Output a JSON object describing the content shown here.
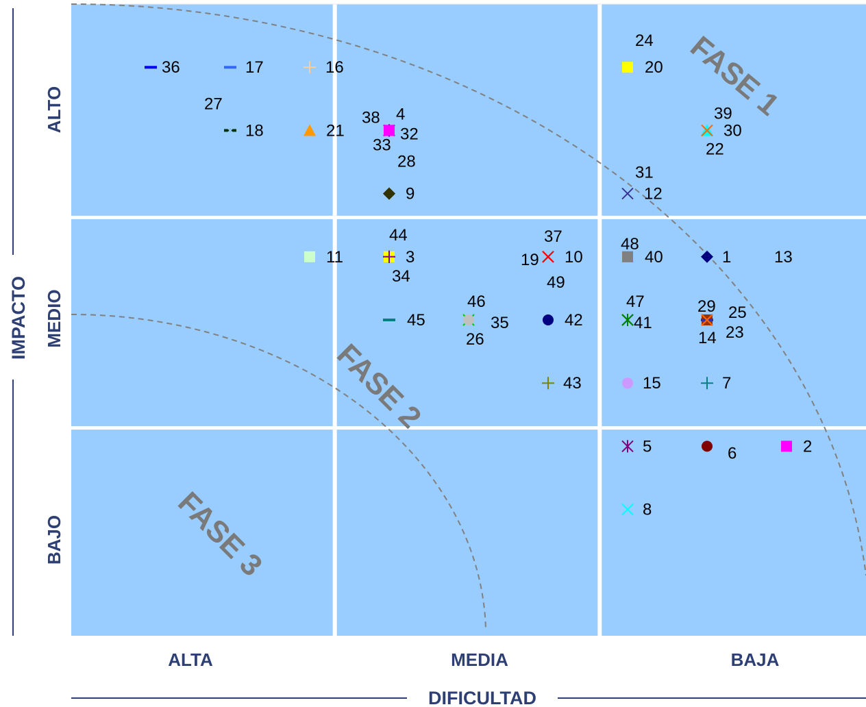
{
  "chart_data": {
    "type": "scatter",
    "xlabel": "DIFICULTAD",
    "ylabel": "IMPACTO",
    "x_categories": [
      "ALTA",
      "MEDIA",
      "BAJA"
    ],
    "y_categories": [
      "BAJO",
      "MEDIO",
      "ALTO"
    ],
    "xlim": [
      0,
      3
    ],
    "ylim": [
      0,
      3
    ],
    "grid": true,
    "background": "#99ccff",
    "grid_color": "#ffffff",
    "phases": [
      {
        "label": "FASE 1"
      },
      {
        "label": "FASE 2"
      },
      {
        "label": "FASE 3"
      }
    ],
    "points": [
      {
        "id": "1",
        "x": 2.4,
        "y": 1.8,
        "color": "#000080",
        "marker": "diamond"
      },
      {
        "id": "2",
        "x": 2.7,
        "y": 0.9,
        "color": "#ff00ff",
        "marker": "square"
      },
      {
        "id": "3",
        "x": 1.2,
        "y": 1.8,
        "color": "#ff0000",
        "marker": "plus"
      },
      {
        "id": "4",
        "x": 1.2,
        "y": 2.4,
        "color": "#ff00ff",
        "marker": "square"
      },
      {
        "id": "5",
        "x": 2.1,
        "y": 0.9,
        "color": "#800080",
        "marker": "star"
      },
      {
        "id": "6",
        "x": 2.4,
        "y": 0.9,
        "color": "#800000",
        "marker": "circle"
      },
      {
        "id": "7",
        "x": 2.4,
        "y": 1.2,
        "color": "#008080",
        "marker": "plus"
      },
      {
        "id": "8",
        "x": 2.1,
        "y": 0.6,
        "color": "#00ffff",
        "marker": "x"
      },
      {
        "id": "9",
        "x": 1.2,
        "y": 2.1,
        "color": "#333300",
        "marker": "diamond"
      },
      {
        "id": "10",
        "x": 1.8,
        "y": 1.8,
        "color": "#ffff00",
        "marker": "x"
      },
      {
        "id": "11",
        "x": 0.9,
        "y": 1.8,
        "color": "#ccffcc",
        "marker": "square"
      },
      {
        "id": "12",
        "x": 2.1,
        "y": 2.1,
        "color": "#ffff99",
        "marker": "x"
      },
      {
        "id": "13",
        "x": 2.7,
        "y": 1.8,
        "color": "#99ccff",
        "marker": "x"
      },
      {
        "id": "14",
        "x": 2.4,
        "y": 1.5,
        "color": "#993300",
        "marker": "square"
      },
      {
        "id": "15",
        "x": 2.1,
        "y": 1.2,
        "color": "#cc99ff",
        "marker": "circle"
      },
      {
        "id": "16",
        "x": 0.9,
        "y": 2.7,
        "color": "#ffcc99",
        "marker": "plus"
      },
      {
        "id": "17",
        "x": 0.6,
        "y": 2.7,
        "color": "#3366ff",
        "marker": "dash"
      },
      {
        "id": "18",
        "x": 0.6,
        "y": 2.4,
        "color": "#003300",
        "marker": "dash"
      },
      {
        "id": "19",
        "x": 1.8,
        "y": 1.8,
        "color": "#800080",
        "marker": "x"
      },
      {
        "id": "20",
        "x": 2.1,
        "y": 2.7,
        "color": "#808080",
        "marker": "circle"
      },
      {
        "id": "21",
        "x": 0.9,
        "y": 2.4,
        "color": "#ff9900",
        "marker": "triangle"
      },
      {
        "id": "22",
        "x": 2.4,
        "y": 2.4,
        "color": "#33cccc",
        "marker": "triangle"
      },
      {
        "id": "23",
        "x": 2.4,
        "y": 1.5,
        "color": "#993300",
        "marker": "x"
      },
      {
        "id": "24",
        "x": 2.1,
        "y": 2.7,
        "color": "#ffff00",
        "marker": "square"
      },
      {
        "id": "25",
        "x": 2.4,
        "y": 1.5,
        "color": "#333399",
        "marker": "dash"
      },
      {
        "id": "26",
        "x": 1.5,
        "y": 1.5,
        "color": "#c0c0c0",
        "marker": "circle"
      },
      {
        "id": "27",
        "x": 0.6,
        "y": 2.4,
        "color": "#99ccff",
        "marker": "x"
      },
      {
        "id": "28",
        "x": 1.2,
        "y": 2.1,
        "color": "#333300",
        "marker": "diamond"
      },
      {
        "id": "29",
        "x": 2.4,
        "y": 1.5,
        "color": "#ff6600",
        "marker": "x"
      },
      {
        "id": "30",
        "x": 2.4,
        "y": 2.4,
        "color": "#00ffff",
        "marker": "triangle"
      },
      {
        "id": "31",
        "x": 2.1,
        "y": 2.1,
        "color": "#333399",
        "marker": "x"
      },
      {
        "id": "32",
        "x": 1.2,
        "y": 2.4,
        "color": "#000080",
        "marker": "star"
      },
      {
        "id": "33",
        "x": 1.2,
        "y": 2.4,
        "color": "#ff00ff",
        "marker": "square"
      },
      {
        "id": "34",
        "x": 1.2,
        "y": 1.8,
        "color": "#ffff00",
        "marker": "square"
      },
      {
        "id": "35",
        "x": 1.5,
        "y": 1.5,
        "color": "#00cc00",
        "marker": "x"
      },
      {
        "id": "36",
        "x": 0.3,
        "y": 2.7,
        "color": "#0000ff",
        "marker": "dash"
      },
      {
        "id": "37",
        "x": 1.8,
        "y": 1.8,
        "color": "#ff0000",
        "marker": "x"
      },
      {
        "id": "38",
        "x": 1.2,
        "y": 2.4,
        "color": "#ff00ff",
        "marker": "square"
      },
      {
        "id": "39",
        "x": 2.4,
        "y": 2.4,
        "color": "#ff6600",
        "marker": "x"
      },
      {
        "id": "40",
        "x": 2.1,
        "y": 1.8,
        "color": "#9999ff",
        "marker": "triangle"
      },
      {
        "id": "41",
        "x": 2.1,
        "y": 1.5,
        "color": "#008000",
        "marker": "star"
      },
      {
        "id": "42",
        "x": 1.8,
        "y": 1.5,
        "color": "#000080",
        "marker": "circle"
      },
      {
        "id": "43",
        "x": 1.8,
        "y": 1.2,
        "color": "#808000",
        "marker": "plus"
      },
      {
        "id": "44",
        "x": 1.2,
        "y": 1.8,
        "color": "#800080",
        "marker": "plus"
      },
      {
        "id": "45",
        "x": 1.2,
        "y": 1.5,
        "color": "#008080",
        "marker": "dash"
      },
      {
        "id": "46",
        "x": 1.5,
        "y": 1.5,
        "color": "#c0c0c0",
        "marker": "circle"
      },
      {
        "id": "47",
        "x": 2.1,
        "y": 1.5,
        "color": "#008000",
        "marker": "star"
      },
      {
        "id": "48",
        "x": 2.1,
        "y": 1.8,
        "color": "#808080",
        "marker": "square"
      },
      {
        "id": "49",
        "x": 1.8,
        "y": 1.8,
        "color": "#ff0000",
        "marker": "x"
      }
    ]
  }
}
